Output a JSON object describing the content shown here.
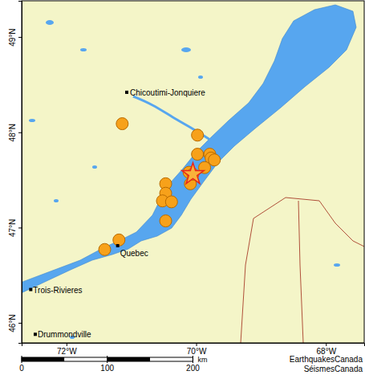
{
  "chart_data": {
    "type": "scatter",
    "xlim": [
      -72.69,
      -67.41
    ],
    "ylim": [
      45.79,
      49.38
    ],
    "xticks": [
      {
        "value": -72,
        "label": "72°W"
      },
      {
        "value": -70,
        "label": "70°W"
      },
      {
        "value": -68,
        "label": "68°W"
      }
    ],
    "yticks": [
      {
        "value": 46,
        "label": "46°N"
      },
      {
        "value": 47,
        "label": "47°N"
      },
      {
        "value": 48,
        "label": "48°N"
      },
      {
        "value": 49,
        "label": "49°N"
      }
    ],
    "series": [
      {
        "color": "#f7a11a",
        "marker": "circle",
        "x": [
          -71.14,
          -69.98,
          -69.98,
          -69.79,
          -69.77,
          -69.72,
          -69.87,
          -70.06,
          -70.11,
          -70.09,
          -70.47,
          -70.47,
          -70.52,
          -70.38,
          -70.47,
          -71.19,
          -71.41
        ],
        "y": [
          48.09,
          47.97,
          47.77,
          47.77,
          47.73,
          47.71,
          47.63,
          47.56,
          47.58,
          47.46,
          47.46,
          47.36,
          47.28,
          47.27,
          47.07,
          46.87,
          46.77
        ]
      },
      {
        "color": "#e8251b",
        "marker": "star",
        "x": [
          -70.05
        ],
        "y": [
          47.56
        ]
      }
    ],
    "places": [
      {
        "label": "Chicoutimi-Jonquiere",
        "x": -71.07,
        "y": 48.42
      },
      {
        "label": "Quebec",
        "x": -71.21,
        "y": 46.81
      },
      {
        "label": "Trois-Rivieres",
        "x": -72.55,
        "y": 46.35
      },
      {
        "label": "Drummondville",
        "x": -72.48,
        "y": 45.88
      }
    ],
    "scale_bar": {
      "ticks": [
        0,
        100,
        200
      ],
      "unit": "km"
    },
    "credits": [
      "EarthquakesCanada",
      "SéismesCanada"
    ]
  }
}
